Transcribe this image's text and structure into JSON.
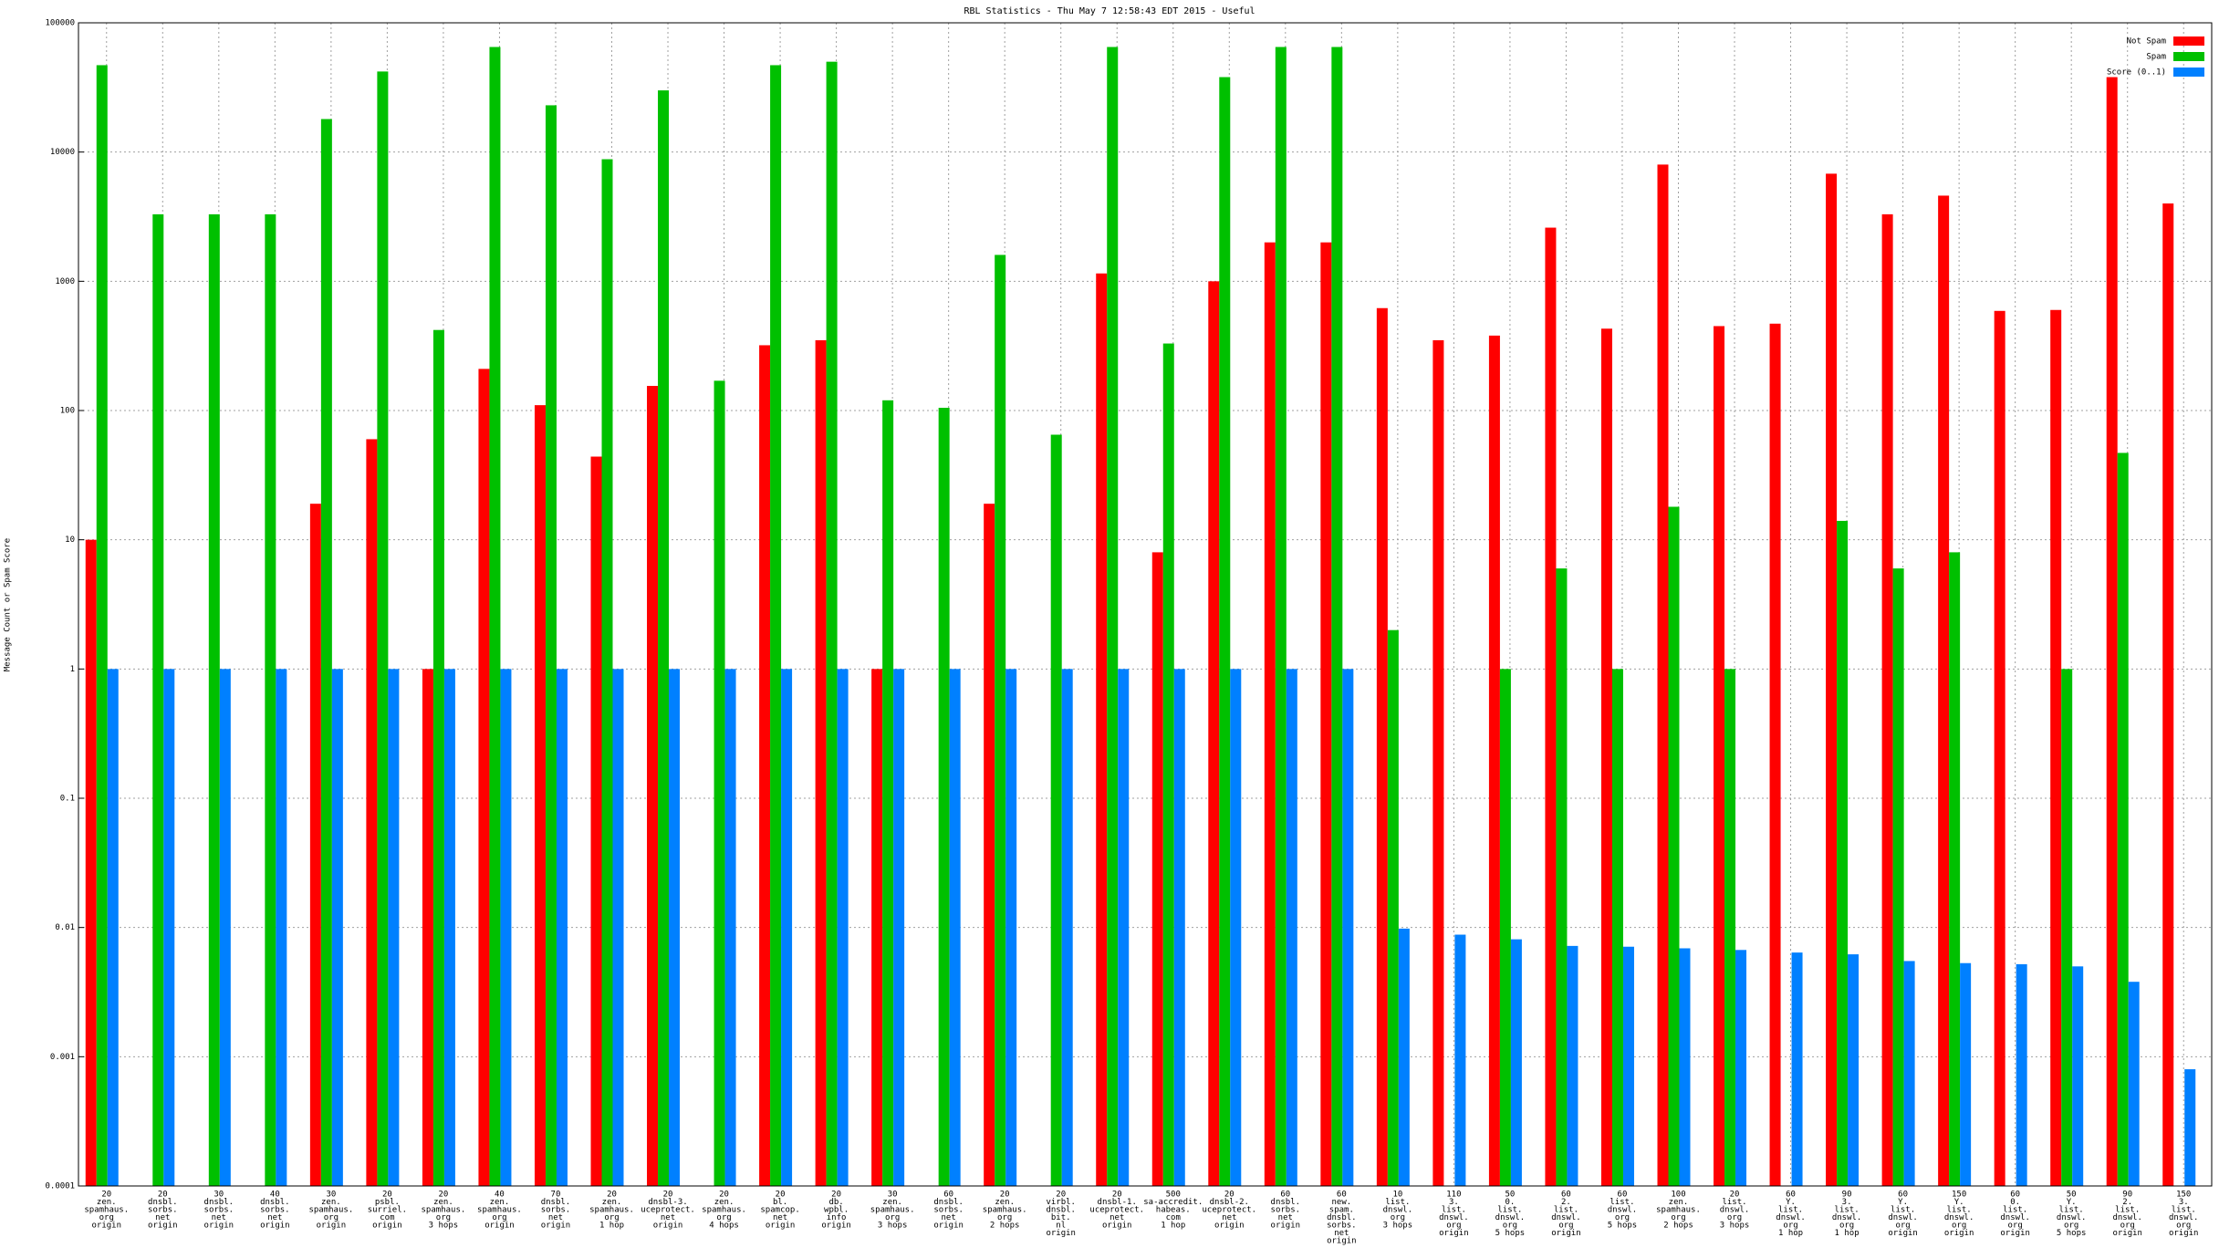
{
  "chart_data": {
    "type": "bar",
    "title": "RBL Statistics - Thu May  7 12:58:43 EDT 2015 - Useful",
    "ylabel": "Message Count or Spam Score",
    "log_scale": true,
    "grid": true,
    "legend": "upper right",
    "ylim": [
      0.0001,
      100000
    ],
    "yticks": [
      0.0001,
      0.001,
      0.01,
      0.1,
      1,
      10,
      100,
      1000,
      10000,
      100000
    ],
    "categories": [
      [
        "20",
        "zen.",
        "spamhaus.",
        "org",
        "origin"
      ],
      [
        "20",
        "dnsbl.",
        "sorbs.",
        "net",
        "origin"
      ],
      [
        "30",
        "dnsbl.",
        "sorbs.",
        "net",
        "origin"
      ],
      [
        "40",
        "dnsbl.",
        "sorbs.",
        "net",
        "origin"
      ],
      [
        "30",
        "zen.",
        "spamhaus.",
        "org",
        "origin"
      ],
      [
        "20",
        "psbl.",
        "surriel.",
        "com",
        "origin"
      ],
      [
        "20",
        "zen.",
        "spamhaus.",
        "org",
        "3 hops"
      ],
      [
        "40",
        "zen.",
        "spamhaus.",
        "org",
        "origin"
      ],
      [
        "70",
        "dnsbl.",
        "sorbs.",
        "net",
        "origin"
      ],
      [
        "20",
        "zen.",
        "spamhaus.",
        "org",
        "1 hop"
      ],
      [
        "20",
        "dnsbl-3.",
        "uceprotect.",
        "net",
        "origin"
      ],
      [
        "20",
        "zen.",
        "spamhaus.",
        "org",
        "4 hops"
      ],
      [
        "20",
        "bl.",
        "spamcop.",
        "net",
        "origin"
      ],
      [
        "20",
        "db.",
        "wpbl.",
        "info",
        "origin"
      ],
      [
        "30",
        "zen.",
        "spamhaus.",
        "org",
        "3 hops"
      ],
      [
        "60",
        "dnsbl.",
        "sorbs.",
        "net",
        "origin"
      ],
      [
        "20",
        "zen.",
        "spamhaus.",
        "org",
        "2 hops"
      ],
      [
        "20",
        "virbl.",
        "dnsbl.",
        "bit.",
        "nl",
        "origin"
      ],
      [
        "20",
        "dnsbl-1.",
        "uceprotect.",
        "net",
        "origin"
      ],
      [
        "500",
        "sa-accredit.",
        "habeas.",
        "com",
        "1 hop"
      ],
      [
        "20",
        "dnsbl-2.",
        "uceprotect.",
        "net",
        "origin"
      ],
      [
        "60",
        "dnsbl.",
        "sorbs.",
        "net",
        "origin"
      ],
      [
        "60",
        "new.",
        "spam.",
        "dnsbl.",
        "sorbs.",
        "net",
        "origin"
      ],
      [
        "10",
        "list.",
        "dnswl.",
        "org",
        "3 hops"
      ],
      [
        "110",
        "3.",
        "list.",
        "dnswl.",
        "org",
        "origin"
      ],
      [
        "50",
        "0.",
        "list.",
        "dnswl.",
        "org",
        "5 hops"
      ],
      [
        "60",
        "2.",
        "list.",
        "dnswl.",
        "org",
        "origin"
      ],
      [
        "60",
        "list.",
        "dnswl.",
        "org",
        "5 hops"
      ],
      [
        "100",
        "zen.",
        "spamhaus.",
        "org",
        "2 hops"
      ],
      [
        "20",
        "list.",
        "dnswl.",
        "org",
        "3 hops"
      ],
      [
        "60",
        "Y.",
        "list.",
        "dnswl.",
        "org",
        "1 hop"
      ],
      [
        "90",
        "3.",
        "list.",
        "dnswl.",
        "org",
        "1 hop"
      ],
      [
        "60",
        "Y.",
        "list.",
        "dnswl.",
        "org",
        "origin"
      ],
      [
        "150",
        "Y.",
        "list.",
        "dnswl.",
        "org",
        "origin"
      ],
      [
        "60",
        "0.",
        "list.",
        "dnswl.",
        "org",
        "origin"
      ],
      [
        "50",
        "Y.",
        "list.",
        "dnswl.",
        "org",
        "5 hops"
      ],
      [
        "90",
        "2.",
        "list.",
        "dnswl.",
        "org",
        "origin"
      ],
      [
        "150",
        "3.",
        "list.",
        "dnswl.",
        "org",
        "origin"
      ]
    ],
    "series": [
      {
        "name": "Not Spam",
        "color": "#ff0000",
        "values": [
          10,
          null,
          null,
          null,
          19,
          60,
          1,
          210,
          110,
          44,
          155,
          null,
          320,
          350,
          1,
          null,
          19,
          null,
          1150,
          8,
          1000,
          2000,
          2000,
          620,
          350,
          380,
          2600,
          430,
          8000,
          450,
          470,
          6800,
          3300,
          4600,
          590,
          600,
          38000,
          4000
        ]
      },
      {
        "name": "Spam",
        "color": "#00c000",
        "values": [
          47000,
          3300,
          3300,
          3300,
          18000,
          42000,
          420,
          65000,
          23000,
          8800,
          30000,
          170,
          47000,
          50000,
          120,
          105,
          1600,
          65,
          65000,
          330,
          38000,
          65000,
          65000,
          2,
          null,
          1,
          6,
          1,
          18,
          1,
          null,
          14,
          6,
          8,
          null,
          1,
          47,
          null
        ]
      },
      {
        "name": "Score (0..1)",
        "color": "#0080ff",
        "values": [
          1,
          1,
          1,
          1,
          1,
          1,
          1,
          1,
          1,
          1,
          1,
          1,
          1,
          1,
          1,
          1,
          1,
          1,
          1,
          1,
          1,
          1,
          1,
          0.0098,
          0.0088,
          0.0081,
          0.0072,
          0.0071,
          0.0069,
          0.0067,
          0.0064,
          0.0062,
          0.0055,
          0.0053,
          0.0052,
          0.005,
          0.0038,
          0.0008
        ]
      }
    ]
  }
}
